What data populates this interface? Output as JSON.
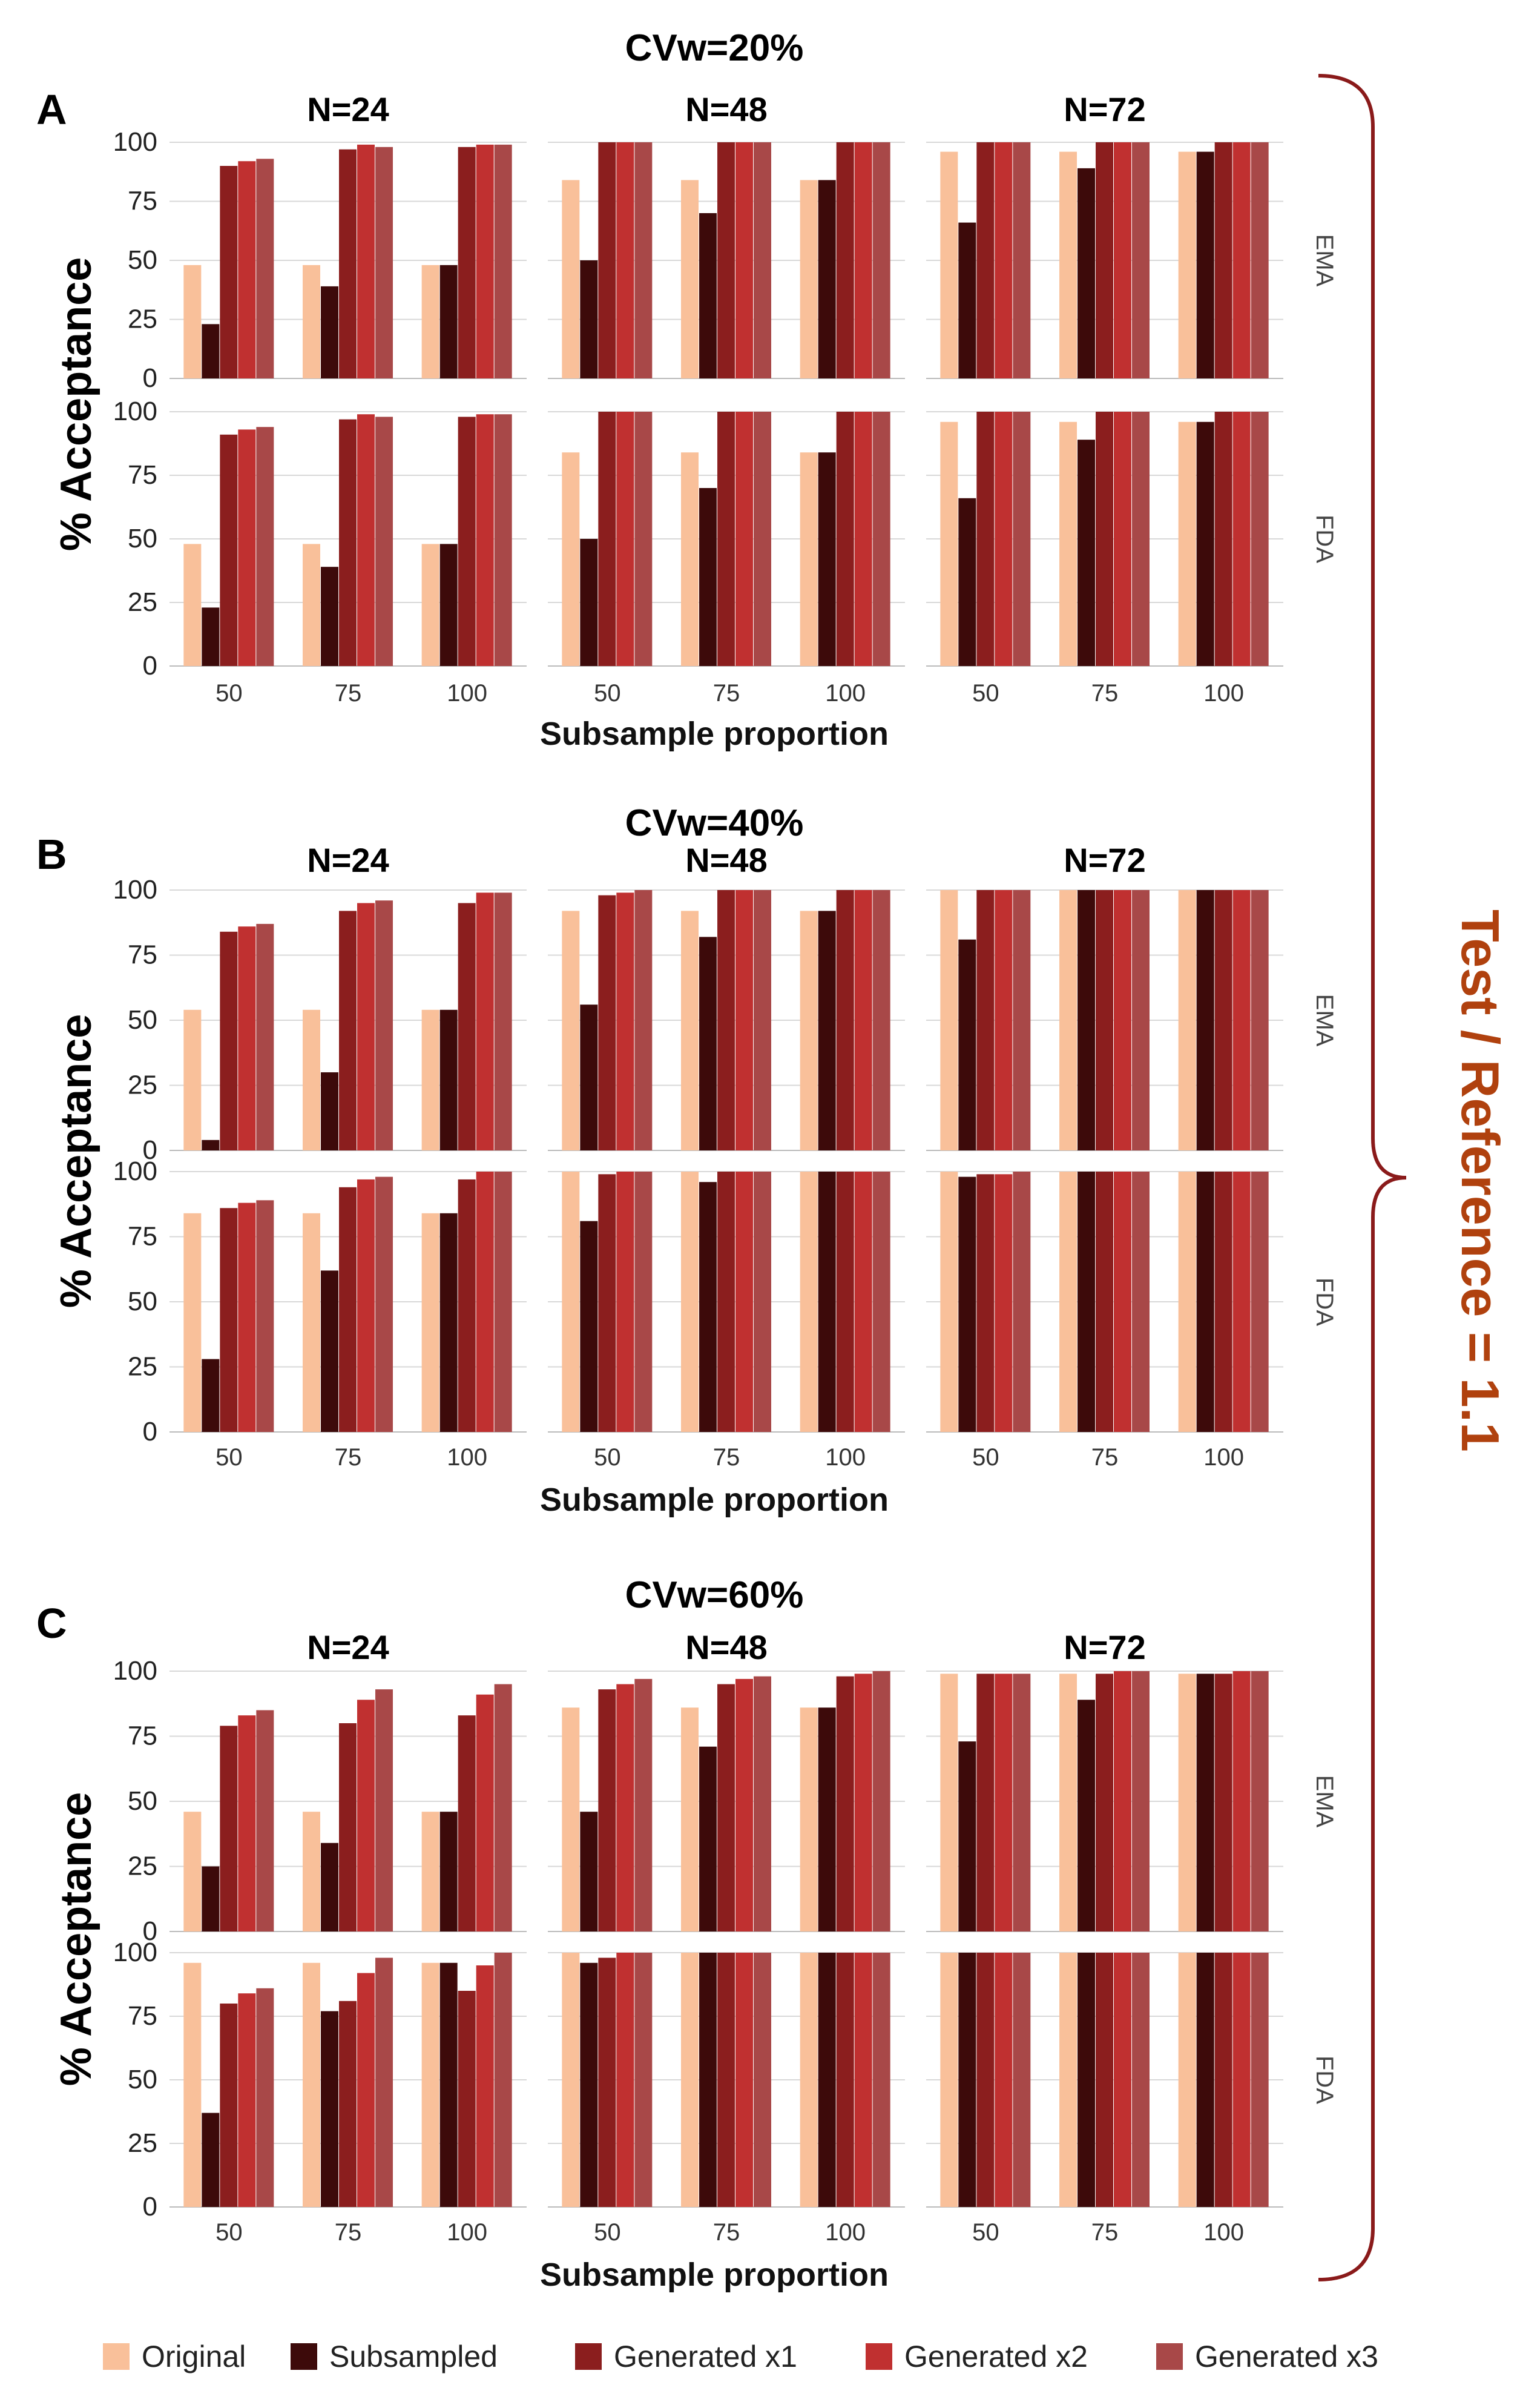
{
  "chart_data": {
    "type": "bar",
    "figure_note": "Test / Reference = 1.1",
    "ylabel": "% Acceptance",
    "xlabel": "Subsample proportion",
    "x_categories": [
      "50",
      "75",
      "100"
    ],
    "y_ticks": [
      "0",
      "25",
      "50",
      "75",
      "100"
    ],
    "ylim": [
      0,
      100
    ],
    "legend": {
      "position": "bottom",
      "entries": [
        {
          "name": "Original",
          "color": "#f9c09a"
        },
        {
          "name": "Subsampled",
          "color": "#3d0a0a"
        },
        {
          "name": "Generated x1",
          "color": "#8b1e1e"
        },
        {
          "name": "Generated x2",
          "color": "#c03030"
        },
        {
          "name": "Generated x3",
          "color": "#a84848"
        }
      ]
    },
    "panels": [
      {
        "letter": "A",
        "title": "CVw=20%",
        "columns": [
          "N=24",
          "N=48",
          "N=72"
        ],
        "rows": [
          {
            "label": "EMA",
            "cells": [
              [
                [
                  48,
                  23,
                  90,
                  92,
                  93
                ],
                [
                  48,
                  39,
                  97,
                  99,
                  98
                ],
                [
                  48,
                  48,
                  98,
                  99,
                  99
                ]
              ],
              [
                [
                  84,
                  50,
                  100,
                  100,
                  100
                ],
                [
                  84,
                  70,
                  100,
                  100,
                  100
                ],
                [
                  84,
                  84,
                  100,
                  100,
                  100
                ]
              ],
              [
                [
                  96,
                  66,
                  100,
                  100,
                  100
                ],
                [
                  96,
                  89,
                  100,
                  100,
                  100
                ],
                [
                  96,
                  96,
                  100,
                  100,
                  100
                ]
              ]
            ]
          },
          {
            "label": "FDA",
            "cells": [
              [
                [
                  48,
                  23,
                  91,
                  93,
                  94
                ],
                [
                  48,
                  39,
                  97,
                  99,
                  98
                ],
                [
                  48,
                  48,
                  98,
                  99,
                  99
                ]
              ],
              [
                [
                  84,
                  50,
                  100,
                  100,
                  100
                ],
                [
                  84,
                  70,
                  100,
                  100,
                  100
                ],
                [
                  84,
                  84,
                  100,
                  100,
                  100
                ]
              ],
              [
                [
                  96,
                  66,
                  100,
                  100,
                  100
                ],
                [
                  96,
                  89,
                  100,
                  100,
                  100
                ],
                [
                  96,
                  96,
                  100,
                  100,
                  100
                ]
              ]
            ]
          }
        ]
      },
      {
        "letter": "B",
        "title": "CVw=40%",
        "columns": [
          "N=24",
          "N=48",
          "N=72"
        ],
        "rows": [
          {
            "label": "EMA",
            "cells": [
              [
                [
                  54,
                  4,
                  84,
                  86,
                  87
                ],
                [
                  54,
                  30,
                  92,
                  95,
                  96
                ],
                [
                  54,
                  54,
                  95,
                  99,
                  99
                ]
              ],
              [
                [
                  92,
                  56,
                  98,
                  99,
                  100
                ],
                [
                  92,
                  82,
                  100,
                  100,
                  100
                ],
                [
                  92,
                  92,
                  100,
                  100,
                  100
                ]
              ],
              [
                [
                  100,
                  81,
                  100,
                  100,
                  100
                ],
                [
                  100,
                  100,
                  100,
                  100,
                  100
                ],
                [
                  100,
                  100,
                  100,
                  100,
                  100
                ]
              ]
            ]
          },
          {
            "label": "FDA",
            "cells": [
              [
                [
                  84,
                  28,
                  86,
                  88,
                  89
                ],
                [
                  84,
                  62,
                  94,
                  97,
                  98
                ],
                [
                  84,
                  84,
                  97,
                  100,
                  100
                ]
              ],
              [
                [
                  100,
                  81,
                  99,
                  100,
                  100
                ],
                [
                  100,
                  96,
                  100,
                  100,
                  100
                ],
                [
                  100,
                  100,
                  100,
                  100,
                  100
                ]
              ],
              [
                [
                  100,
                  98,
                  99,
                  99,
                  100
                ],
                [
                  100,
                  100,
                  100,
                  100,
                  100
                ],
                [
                  100,
                  100,
                  100,
                  100,
                  100
                ]
              ]
            ]
          }
        ]
      },
      {
        "letter": "C",
        "title": "CVw=60%",
        "columns": [
          "N=24",
          "N=48",
          "N=72"
        ],
        "rows": [
          {
            "label": "EMA",
            "cells": [
              [
                [
                  46,
                  25,
                  79,
                  83,
                  85
                ],
                [
                  46,
                  34,
                  80,
                  89,
                  93
                ],
                [
                  46,
                  46,
                  83,
                  91,
                  95
                ]
              ],
              [
                [
                  86,
                  46,
                  93,
                  95,
                  97
                ],
                [
                  86,
                  71,
                  95,
                  97,
                  98
                ],
                [
                  86,
                  86,
                  98,
                  99,
                  100
                ]
              ],
              [
                [
                  99,
                  73,
                  99,
                  99,
                  99
                ],
                [
                  99,
                  89,
                  99,
                  100,
                  100
                ],
                [
                  99,
                  99,
                  99,
                  100,
                  100
                ]
              ]
            ]
          },
          {
            "label": "FDA",
            "cells": [
              [
                [
                  96,
                  37,
                  80,
                  84,
                  86
                ],
                [
                  96,
                  77,
                  81,
                  92,
                  98
                ],
                [
                  96,
                  96,
                  85,
                  95,
                  100
                ]
              ],
              [
                [
                  100,
                  96,
                  98,
                  100,
                  100
                ],
                [
                  100,
                  100,
                  100,
                  100,
                  100
                ],
                [
                  100,
                  100,
                  100,
                  100,
                  100
                ]
              ],
              [
                [
                  100,
                  100,
                  100,
                  100,
                  100
                ],
                [
                  100,
                  100,
                  100,
                  100,
                  100
                ],
                [
                  100,
                  100,
                  100,
                  100,
                  100
                ]
              ]
            ]
          }
        ]
      }
    ]
  }
}
